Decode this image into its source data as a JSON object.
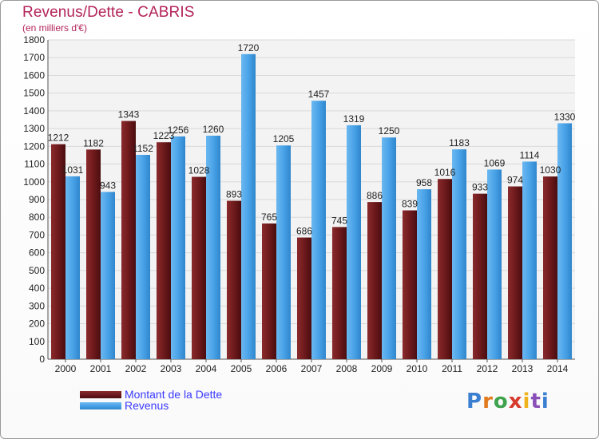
{
  "header": {
    "title": "Revenus/Dette - CABRIS",
    "subtitle": "(en milliers d'€)"
  },
  "colors": {
    "title": "#b3235a",
    "debt_bar": "#6e1a1c",
    "revenue_bar": "#4aa3e8",
    "legend_text": "#3a3aff",
    "grid": "#d9d9d9"
  },
  "legend": {
    "debt_label": "Montant de la Dette",
    "revenue_label": "Revenus"
  },
  "logo": {
    "text": "Proxiti",
    "letters": [
      {
        "ch": "P",
        "color": "#3b7fd1"
      },
      {
        "ch": "r",
        "color": "#e07b1f"
      },
      {
        "ch": "o",
        "color": "#3fa34d"
      },
      {
        "ch": "x",
        "color": "#d63a2c"
      },
      {
        "ch": "i",
        "color": "#f0b21a"
      },
      {
        "ch": "t",
        "color": "#8a4fb8"
      },
      {
        "ch": "i",
        "color": "#3b7fd1"
      }
    ]
  },
  "chart_data": {
    "type": "bar",
    "title": "Revenus/Dette - CABRIS",
    "subtitle": "(en milliers d'€)",
    "categories": [
      "2000",
      "2001",
      "2002",
      "2003",
      "2004",
      "2005",
      "2006",
      "2007",
      "2008",
      "2009",
      "2010",
      "2011",
      "2012",
      "2013",
      "2014"
    ],
    "series": [
      {
        "name": "Montant de la Dette",
        "values": [
          1212,
          1182,
          1343,
          1223,
          1028,
          893,
          765,
          686,
          745,
          886,
          839,
          1016,
          933,
          974,
          1030
        ]
      },
      {
        "name": "Revenus",
        "values": [
          1031,
          943,
          1152,
          1256,
          1260,
          1720,
          1205,
          1457,
          1319,
          1250,
          958,
          1183,
          1069,
          1114,
          1330
        ]
      }
    ],
    "y_ticks": [
      "0",
      "100",
      "200",
      "300",
      "400",
      "500",
      "600",
      "700",
      "800",
      "900",
      "1000",
      "1100",
      "1200",
      "1300",
      "1400",
      "1500",
      "1600",
      "1700",
      "1800"
    ],
    "data_labels": [
      [
        "1212",
        "1182",
        "1343",
        "1223",
        "1028",
        "893",
        "765",
        "686",
        "745",
        "886",
        "839",
        "1016",
        "933",
        "974",
        "1030"
      ],
      [
        "1031",
        "943",
        "1152",
        "1256",
        "1260",
        "1720",
        "1205",
        "1457",
        "1319",
        "1250",
        "958",
        "1183",
        "1069",
        "1114",
        "1330"
      ]
    ],
    "ylim": [
      0,
      1800
    ],
    "grid": true,
    "legend_position": "bottom-left"
  }
}
